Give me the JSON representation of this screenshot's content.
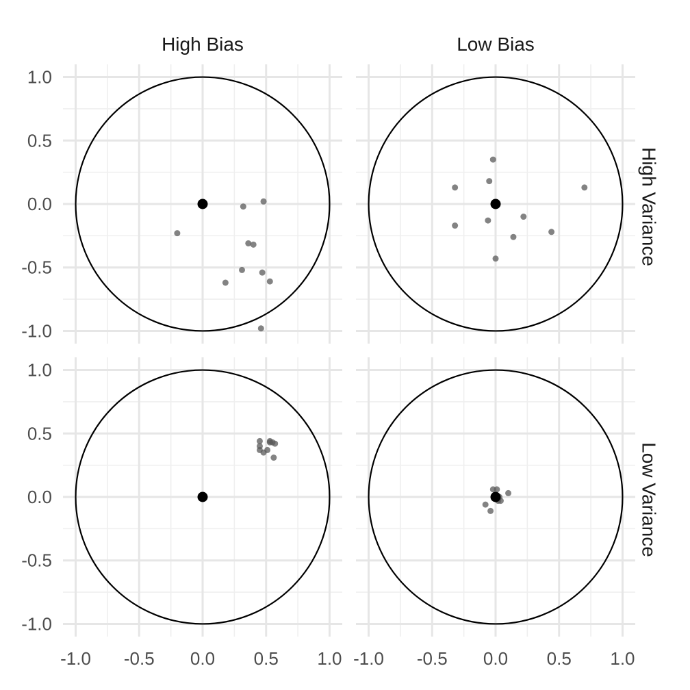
{
  "chart_data": {
    "type": "scatter",
    "title": "",
    "xlabel": "",
    "ylabel": "",
    "xlim": [
      -1.1,
      1.1
    ],
    "ylim": [
      -1.1,
      1.1
    ],
    "x_ticks": [
      -1.0,
      -0.5,
      0.0,
      0.5,
      1.0
    ],
    "x_tick_labels": [
      "-1.0",
      "-0.5",
      "0.0",
      "0.5",
      "1.0"
    ],
    "y_ticks": [
      1.0,
      0.5,
      0.0,
      -0.5,
      -1.0
    ],
    "y_tick_labels": [
      "1.0",
      "0.5",
      "0.0",
      "-0.5",
      "-1.0"
    ],
    "grid": true,
    "column_labels": [
      "High Bias",
      "Low Bias"
    ],
    "row_labels": [
      "High Variance",
      "Low Variance"
    ],
    "circle_radius": 1.0,
    "target": [
      0.0,
      0.0
    ],
    "point_color": "#595959",
    "target_color": "#000000",
    "panels": [
      {
        "col": 0,
        "row": 0,
        "points": [
          [
            0.32,
            -0.02
          ],
          [
            0.48,
            0.02
          ],
          [
            -0.2,
            -0.23
          ],
          [
            0.36,
            -0.31
          ],
          [
            0.4,
            -0.32
          ],
          [
            0.31,
            -0.52
          ],
          [
            0.47,
            -0.54
          ],
          [
            0.53,
            -0.61
          ],
          [
            0.18,
            -0.62
          ],
          [
            0.46,
            -0.98
          ]
        ]
      },
      {
        "col": 1,
        "row": 0,
        "points": [
          [
            -0.02,
            0.35
          ],
          [
            -0.05,
            0.18
          ],
          [
            -0.32,
            0.13
          ],
          [
            0.7,
            0.13
          ],
          [
            0.22,
            -0.1
          ],
          [
            -0.06,
            -0.13
          ],
          [
            -0.32,
            -0.17
          ],
          [
            0.14,
            -0.26
          ],
          [
            0.44,
            -0.22
          ],
          [
            0.0,
            -0.43
          ]
        ]
      },
      {
        "col": 0,
        "row": 1,
        "points": [
          [
            0.45,
            0.44
          ],
          [
            0.45,
            0.4
          ],
          [
            0.45,
            0.37
          ],
          [
            0.48,
            0.35
          ],
          [
            0.51,
            0.37
          ],
          [
            0.53,
            0.44
          ],
          [
            0.55,
            0.43
          ],
          [
            0.57,
            0.42
          ],
          [
            0.56,
            0.31
          ],
          [
            0.53,
            0.43
          ]
        ]
      },
      {
        "col": 1,
        "row": 1,
        "points": [
          [
            -0.02,
            0.06
          ],
          [
            0.01,
            0.06
          ],
          [
            0.1,
            0.03
          ],
          [
            -0.08,
            -0.06
          ],
          [
            -0.04,
            -0.11
          ],
          [
            0.04,
            -0.03
          ],
          [
            0.01,
            -0.02
          ],
          [
            0.02,
            -0.03
          ],
          [
            -0.01,
            0.01
          ],
          [
            0.03,
            0.0
          ]
        ]
      }
    ]
  }
}
